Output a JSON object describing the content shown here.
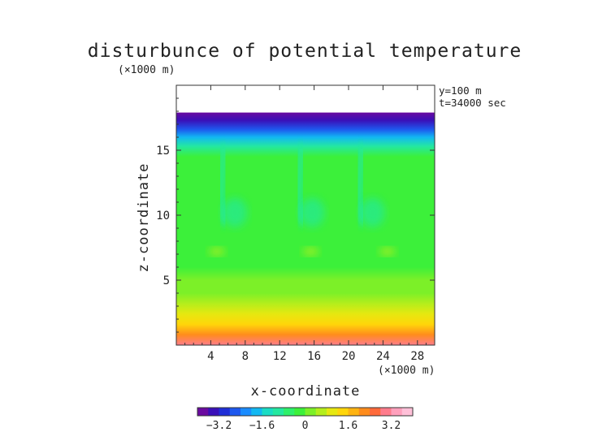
{
  "chart_data": {
    "type": "heatmap",
    "title": "disturbunce of potential temperature",
    "xlabel": "x-coordinate",
    "ylabel": "z-coordinate",
    "x_unit": "(×1000 m)",
    "z_unit": "(×1000 m)",
    "annotations": [
      "y=100 m",
      "t=34000 sec"
    ],
    "xlim": [
      0,
      30
    ],
    "zlim": [
      0,
      20
    ],
    "data_top_z": 17.9,
    "x_ticks": [
      4,
      8,
      12,
      16,
      20,
      24,
      28
    ],
    "z_ticks": [
      5,
      10,
      15
    ],
    "colorbar": {
      "range": [
        -4,
        4
      ],
      "ticks": [
        -3.2,
        -1.6,
        0,
        1.6,
        3.2
      ],
      "tick_labels": [
        "−3.2",
        "−1.6",
        "0",
        "1.6",
        "3.2"
      ],
      "colors": [
        "#6a0aa0",
        "#3a10b8",
        "#1f2ed6",
        "#1e58ee",
        "#1a8cff",
        "#12b8f2",
        "#1adcc4",
        "#24e8a0",
        "#2ef06a",
        "#3cf03a",
        "#7cf028",
        "#b4ee1c",
        "#e6e810",
        "#ffd60a",
        "#ffb412",
        "#ff8c1c",
        "#ff6a3a",
        "#ff7c8c",
        "#ffa0bc",
        "#ffc0d8"
      ]
    },
    "field_profile": [
      {
        "z": 0.0,
        "value": 2.8
      },
      {
        "z": 0.8,
        "value": 2.3
      },
      {
        "z": 1.6,
        "value": 1.5
      },
      {
        "z": 2.4,
        "value": 0.9
      },
      {
        "z": 3.2,
        "value": 0.5
      },
      {
        "z": 4.0,
        "value": 0.25
      },
      {
        "z": 5.0,
        "value": 0.05
      },
      {
        "z": 6.0,
        "value": -0.1
      },
      {
        "z": 7.0,
        "value": -0.3
      },
      {
        "z": 9.0,
        "value": -0.2
      },
      {
        "z": 12.0,
        "value": -0.1
      },
      {
        "z": 14.5,
        "value": -0.3
      },
      {
        "z": 15.3,
        "value": -1.2
      },
      {
        "z": 16.0,
        "value": -1.8
      },
      {
        "z": 16.6,
        "value": -2.6
      },
      {
        "z": 17.3,
        "value": -3.4
      },
      {
        "z": 17.9,
        "value": -3.8
      }
    ]
  }
}
